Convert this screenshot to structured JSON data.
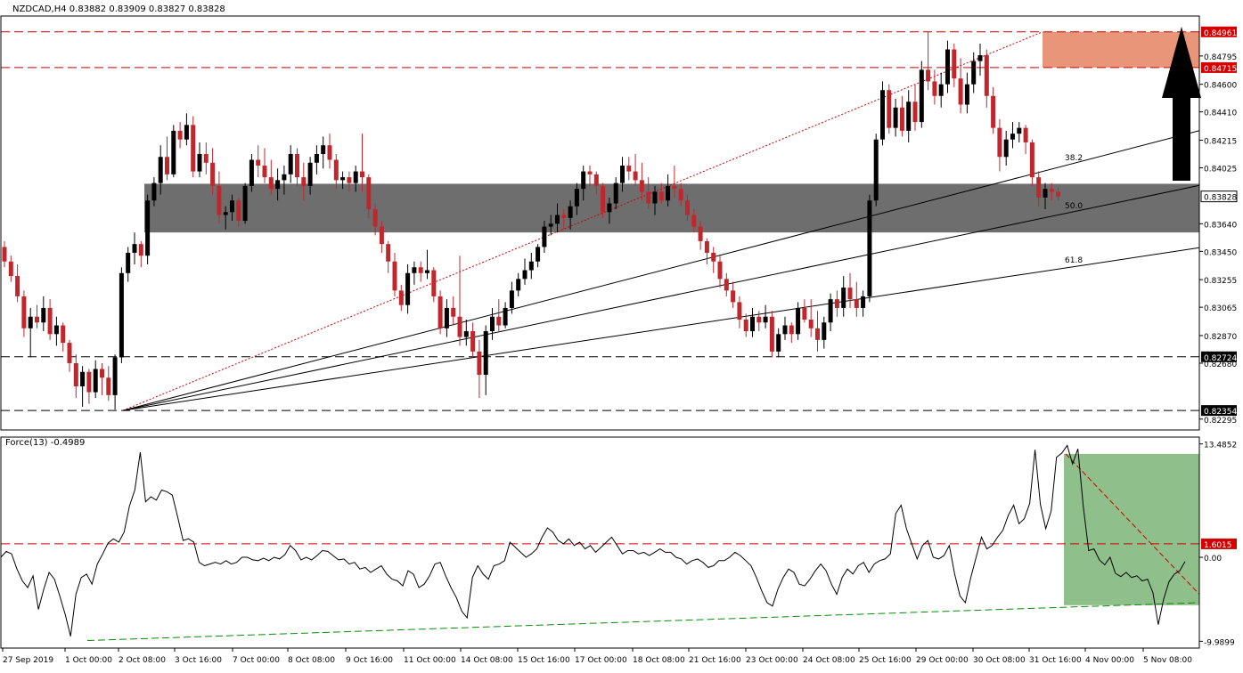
{
  "chart_data": {
    "type": "candlestick",
    "symbol_header": "NZDCAD,H4  0.83882 0.83909 0.83827 0.83828",
    "price_axis_ticks": [
      "0.84795",
      "0.84600",
      "0.84410",
      "0.84215",
      "0.84025",
      "0.83640",
      "0.83450",
      "0.83255",
      "0.83065",
      "0.82870",
      "0.82680",
      "0.82295"
    ],
    "price_ylim": [
      0.8222,
      0.8507
    ],
    "levels": [
      {
        "label": "0.84961",
        "value": 0.84961
      },
      {
        "label": "0.84715",
        "value": 0.84715
      },
      {
        "label": "0.83828",
        "value": 0.83828
      },
      {
        "label": "0.82724",
        "value": 0.82724
      },
      {
        "label": "0.82354",
        "value": 0.82354
      }
    ],
    "fib_labels": [
      {
        "label": "38.2",
        "value": 0.8404
      },
      {
        "label": "50.0",
        "value": 0.8371
      },
      {
        "label": "61.8",
        "value": 0.83335
      }
    ],
    "zones": {
      "resistance": {
        "from": 0.84715,
        "to": 0.84961
      },
      "support": {
        "from": 0.8358,
        "to": 0.83915
      }
    },
    "x_axis_labels": [
      "27 Sep 2019",
      "1 Oct 00:00",
      "2 Oct 08:00",
      "3 Oct 16:00",
      "7 Oct 00:00",
      "8 Oct 08:00",
      "9 Oct 16:00",
      "11 Oct 00:00",
      "14 Oct 08:00",
      "15 Oct 16:00",
      "17 Oct 00:00",
      "18 Oct 08:00",
      "21 Oct 16:00",
      "23 Oct 00:00",
      "24 Oct 08:00",
      "25 Oct 16:00",
      "29 Oct 00:00",
      "30 Oct 08:00",
      "31 Oct 16:00",
      "4 Nov 00:00",
      "5 Nov 08:00"
    ],
    "candles": [
      [
        0.8348,
        0.8352,
        0.8334,
        0.8338
      ],
      [
        0.8338,
        0.8342,
        0.8324,
        0.8328
      ],
      [
        0.8328,
        0.8336,
        0.831,
        0.8314
      ],
      [
        0.8314,
        0.8318,
        0.8286,
        0.8292
      ],
      [
        0.8292,
        0.8306,
        0.8272,
        0.83
      ],
      [
        0.83,
        0.8308,
        0.8292,
        0.8296
      ],
      [
        0.8296,
        0.8314,
        0.829,
        0.8306
      ],
      [
        0.8306,
        0.8312,
        0.8284,
        0.8288
      ],
      [
        0.8288,
        0.83,
        0.828,
        0.8294
      ],
      [
        0.8294,
        0.8296,
        0.8276,
        0.8282
      ],
      [
        0.8282,
        0.8284,
        0.8262,
        0.8268
      ],
      [
        0.8268,
        0.8274,
        0.8244,
        0.8252
      ],
      [
        0.8252,
        0.8266,
        0.8238,
        0.8262
      ],
      [
        0.8262,
        0.8264,
        0.824,
        0.8248
      ],
      [
        0.8248,
        0.827,
        0.8244,
        0.8264
      ],
      [
        0.8264,
        0.8268,
        0.8246,
        0.8258
      ],
      [
        0.8258,
        0.8266,
        0.8242,
        0.8246
      ],
      [
        0.8246,
        0.8274,
        0.8236,
        0.8272
      ],
      [
        0.8272,
        0.8334,
        0.8268,
        0.833
      ],
      [
        0.833,
        0.8348,
        0.8324,
        0.8344
      ],
      [
        0.8344,
        0.8358,
        0.8336,
        0.835
      ],
      [
        0.835,
        0.8352,
        0.8334,
        0.8342
      ],
      [
        0.8342,
        0.8384,
        0.8336,
        0.838
      ],
      [
        0.838,
        0.8396,
        0.8376,
        0.8392
      ],
      [
        0.8392,
        0.8418,
        0.8384,
        0.841
      ],
      [
        0.841,
        0.8424,
        0.8394,
        0.8398
      ],
      [
        0.8398,
        0.8432,
        0.8396,
        0.8428
      ],
      [
        0.8428,
        0.8434,
        0.8416,
        0.8422
      ],
      [
        0.8422,
        0.844,
        0.8418,
        0.8432
      ],
      [
        0.8432,
        0.8438,
        0.8396,
        0.84
      ],
      [
        0.84,
        0.842,
        0.8396,
        0.8412
      ],
      [
        0.8412,
        0.842,
        0.8398,
        0.8406
      ],
      [
        0.8406,
        0.8416,
        0.8384,
        0.839
      ],
      [
        0.839,
        0.84,
        0.8364,
        0.837
      ],
      [
        0.837,
        0.8376,
        0.836,
        0.8372
      ],
      [
        0.8372,
        0.8384,
        0.8366,
        0.838
      ],
      [
        0.838,
        0.8382,
        0.8362,
        0.8366
      ],
      [
        0.8366,
        0.8392,
        0.8364,
        0.839
      ],
      [
        0.839,
        0.8412,
        0.8386,
        0.8408
      ],
      [
        0.8408,
        0.8418,
        0.8396,
        0.8404
      ],
      [
        0.8404,
        0.8416,
        0.8392,
        0.8396
      ],
      [
        0.8396,
        0.8408,
        0.8384,
        0.8388
      ],
      [
        0.8388,
        0.8402,
        0.838,
        0.8394
      ],
      [
        0.8394,
        0.8404,
        0.8384,
        0.8398
      ],
      [
        0.8398,
        0.8418,
        0.8392,
        0.8412
      ],
      [
        0.8412,
        0.8416,
        0.839,
        0.8396
      ],
      [
        0.8396,
        0.8406,
        0.838,
        0.839
      ],
      [
        0.839,
        0.841,
        0.8384,
        0.8406
      ],
      [
        0.8406,
        0.8418,
        0.8398,
        0.8412
      ],
      [
        0.8412,
        0.8424,
        0.8402,
        0.8418
      ],
      [
        0.8418,
        0.8426,
        0.8402,
        0.8408
      ],
      [
        0.8408,
        0.8412,
        0.8388,
        0.8394
      ],
      [
        0.8394,
        0.84,
        0.8388,
        0.8396
      ],
      [
        0.8396,
        0.84,
        0.8386,
        0.8392
      ],
      [
        0.8392,
        0.8404,
        0.8386,
        0.84
      ],
      [
        0.84,
        0.8426,
        0.8386,
        0.8396
      ],
      [
        0.8396,
        0.8398,
        0.8368,
        0.8374
      ],
      [
        0.8374,
        0.8378,
        0.8356,
        0.8362
      ],
      [
        0.8362,
        0.8366,
        0.8344,
        0.835
      ],
      [
        0.835,
        0.8352,
        0.833,
        0.8338
      ],
      [
        0.8338,
        0.8344,
        0.8314,
        0.8318
      ],
      [
        0.8318,
        0.8322,
        0.8304,
        0.8308
      ],
      [
        0.8308,
        0.8336,
        0.8302,
        0.833
      ],
      [
        0.833,
        0.8338,
        0.8322,
        0.8334
      ],
      [
        0.8334,
        0.8338,
        0.8324,
        0.833
      ],
      [
        0.833,
        0.8346,
        0.8326,
        0.8332
      ],
      [
        0.8332,
        0.8334,
        0.831,
        0.8314
      ],
      [
        0.8314,
        0.8318,
        0.8288,
        0.8292
      ],
      [
        0.8292,
        0.8312,
        0.8286,
        0.8306
      ],
      [
        0.8306,
        0.8314,
        0.8294,
        0.83
      ],
      [
        0.83,
        0.8342,
        0.828,
        0.8286
      ],
      [
        0.8286,
        0.8298,
        0.828,
        0.829
      ],
      [
        0.829,
        0.8296,
        0.8272,
        0.8276
      ],
      [
        0.8276,
        0.8284,
        0.8244,
        0.826
      ],
      [
        0.826,
        0.8294,
        0.8246,
        0.829
      ],
      [
        0.829,
        0.8306,
        0.8284,
        0.83
      ],
      [
        0.83,
        0.8312,
        0.829,
        0.8294
      ],
      [
        0.8294,
        0.831,
        0.8292,
        0.8306
      ],
      [
        0.8306,
        0.8324,
        0.8302,
        0.8318
      ],
      [
        0.8318,
        0.833,
        0.8314,
        0.8326
      ],
      [
        0.8326,
        0.834,
        0.8322,
        0.8332
      ],
      [
        0.8332,
        0.8344,
        0.8326,
        0.8338
      ],
      [
        0.8338,
        0.835,
        0.8334,
        0.8348
      ],
      [
        0.8348,
        0.8366,
        0.8344,
        0.8362
      ],
      [
        0.8362,
        0.837,
        0.8356,
        0.8364
      ],
      [
        0.8364,
        0.8378,
        0.8358,
        0.837
      ],
      [
        0.837,
        0.8374,
        0.836,
        0.8368
      ],
      [
        0.8368,
        0.838,
        0.836,
        0.8376
      ],
      [
        0.8376,
        0.8392,
        0.837,
        0.8388
      ],
      [
        0.8388,
        0.8404,
        0.838,
        0.84
      ],
      [
        0.84,
        0.8404,
        0.839,
        0.8398
      ],
      [
        0.8398,
        0.84,
        0.8384,
        0.839
      ],
      [
        0.839,
        0.8392,
        0.8368,
        0.8372
      ],
      [
        0.8372,
        0.8382,
        0.8364,
        0.8378
      ],
      [
        0.8378,
        0.8396,
        0.8374,
        0.8392
      ],
      [
        0.8392,
        0.841,
        0.8386,
        0.8404
      ],
      [
        0.8404,
        0.841,
        0.8394,
        0.84
      ],
      [
        0.84,
        0.8412,
        0.839,
        0.8394
      ],
      [
        0.8394,
        0.8406,
        0.838,
        0.8386
      ],
      [
        0.8386,
        0.8396,
        0.8374,
        0.8378
      ],
      [
        0.8378,
        0.839,
        0.837,
        0.8386
      ],
      [
        0.8386,
        0.8392,
        0.8378,
        0.838
      ],
      [
        0.838,
        0.8398,
        0.8376,
        0.839
      ],
      [
        0.839,
        0.8404,
        0.8382,
        0.8388
      ],
      [
        0.8388,
        0.8392,
        0.8376,
        0.838
      ],
      [
        0.838,
        0.8384,
        0.8366,
        0.837
      ],
      [
        0.837,
        0.8374,
        0.8358,
        0.8362
      ],
      [
        0.8362,
        0.8366,
        0.8346,
        0.8352
      ],
      [
        0.8352,
        0.8354,
        0.8336,
        0.8344
      ],
      [
        0.8344,
        0.8348,
        0.833,
        0.8338
      ],
      [
        0.8338,
        0.8342,
        0.832,
        0.8326
      ],
      [
        0.8326,
        0.833,
        0.8314,
        0.8318
      ],
      [
        0.8318,
        0.8324,
        0.8306,
        0.831
      ],
      [
        0.831,
        0.8314,
        0.8292,
        0.8298
      ],
      [
        0.8298,
        0.8302,
        0.8286,
        0.829
      ],
      [
        0.829,
        0.8306,
        0.8286,
        0.83
      ],
      [
        0.83,
        0.8304,
        0.829,
        0.8296
      ],
      [
        0.8296,
        0.8308,
        0.8292,
        0.83
      ],
      [
        0.83,
        0.8304,
        0.8272,
        0.8276
      ],
      [
        0.8276,
        0.8292,
        0.8272,
        0.8288
      ],
      [
        0.8288,
        0.83,
        0.8284,
        0.8294
      ],
      [
        0.8294,
        0.8296,
        0.8282,
        0.8288
      ],
      [
        0.8288,
        0.831,
        0.8284,
        0.8306
      ],
      [
        0.8306,
        0.8312,
        0.8296,
        0.8298
      ],
      [
        0.8298,
        0.8312,
        0.8286,
        0.8292
      ],
      [
        0.8292,
        0.8304,
        0.8276,
        0.8284
      ],
      [
        0.8284,
        0.83,
        0.8278,
        0.8296
      ],
      [
        0.8296,
        0.8316,
        0.829,
        0.8312
      ],
      [
        0.8312,
        0.8318,
        0.83,
        0.8306
      ],
      [
        0.8306,
        0.8328,
        0.83,
        0.832
      ],
      [
        0.832,
        0.833,
        0.8306,
        0.8312
      ],
      [
        0.8312,
        0.8324,
        0.83,
        0.8306
      ],
      [
        0.8306,
        0.8318,
        0.83,
        0.8314
      ],
      [
        0.8314,
        0.8384,
        0.831,
        0.838
      ],
      [
        0.838,
        0.8426,
        0.8376,
        0.8422
      ],
      [
        0.8422,
        0.8462,
        0.8418,
        0.8456
      ],
      [
        0.8456,
        0.846,
        0.8426,
        0.843
      ],
      [
        0.843,
        0.845,
        0.8424,
        0.8444
      ],
      [
        0.8444,
        0.8452,
        0.8424,
        0.8428
      ],
      [
        0.8428,
        0.8456,
        0.842,
        0.8448
      ],
      [
        0.8448,
        0.846,
        0.8428,
        0.8434
      ],
      [
        0.8434,
        0.8476,
        0.843,
        0.847
      ],
      [
        0.847,
        0.8496,
        0.8456,
        0.8462
      ],
      [
        0.8462,
        0.847,
        0.8446,
        0.8452
      ],
      [
        0.8452,
        0.8468,
        0.8444,
        0.846
      ],
      [
        0.846,
        0.849,
        0.8454,
        0.8484
      ],
      [
        0.8484,
        0.8488,
        0.8458,
        0.8464
      ],
      [
        0.8464,
        0.8478,
        0.844,
        0.8446
      ],
      [
        0.8446,
        0.8468,
        0.844,
        0.846
      ],
      [
        0.846,
        0.8482,
        0.8454,
        0.8476
      ],
      [
        0.8476,
        0.8488,
        0.8466,
        0.848
      ],
      [
        0.848,
        0.8484,
        0.8444,
        0.8452
      ],
      [
        0.8452,
        0.8458,
        0.8426,
        0.843
      ],
      [
        0.843,
        0.8436,
        0.84,
        0.841
      ],
      [
        0.841,
        0.8428,
        0.8404,
        0.8422
      ],
      [
        0.8422,
        0.8434,
        0.8416,
        0.8426
      ],
      [
        0.8426,
        0.8434,
        0.842,
        0.843
      ],
      [
        0.843,
        0.8432,
        0.8412,
        0.842
      ],
      [
        0.842,
        0.8422,
        0.839,
        0.8396
      ],
      [
        0.8396,
        0.84,
        0.8376,
        0.8382
      ],
      [
        0.8382,
        0.8392,
        0.8374,
        0.8388
      ],
      [
        0.8388,
        0.8392,
        0.838,
        0.8386
      ],
      [
        0.8386,
        0.8389,
        0.838,
        0.83828
      ]
    ],
    "indicator": {
      "label": "Force(13) -0.4989",
      "axis_ticks": [
        "13.4852",
        "1.6015",
        "0.00",
        "-9.9899"
      ],
      "ylim": [
        -10.8,
        14.3
      ],
      "level": {
        "label": "1.6015",
        "value": 1.6015
      },
      "values": [
        0.0,
        0.7,
        0.4,
        -1.4,
        -2.8,
        -3.6,
        -2.2,
        -6.2,
        -3.8,
        -1.8,
        -2.6,
        -4.6,
        -6.8,
        -9.4,
        -4.4,
        -2.4,
        -2.0,
        -3.2,
        -0.8,
        0.4,
        1.7,
        2.2,
        1.8,
        3.0,
        6.1,
        8.0,
        12.5,
        6.6,
        7.2,
        6.8,
        8.0,
        7.8,
        7.4,
        4.8,
        2.0,
        2.2,
        1.8,
        -0.6,
        -1.0,
        -0.8,
        -0.6,
        -0.8,
        -0.4,
        -0.8,
        -0.6,
        0.0,
        0.0,
        -0.3,
        -0.4,
        -0.1,
        -0.4,
        0.0,
        -0.2,
        0.3,
        1.4,
        0.8,
        -0.3,
        0.0,
        -0.3,
        0.2,
        0.8,
        0.7,
        0.2,
        -0.3,
        -0.2,
        -0.8,
        -0.6,
        -1.4,
        -1.2,
        -1.8,
        -1.4,
        -1.0,
        -2.0,
        -2.6,
        -2.8,
        -3.4,
        -1.6,
        -2.0,
        -3.6,
        -3.2,
        -2.2,
        -0.8,
        -0.6,
        -2.2,
        -3.6,
        -4.8,
        -6.4,
        -7.2,
        -2.4,
        -1.0,
        -2.0,
        -2.6,
        -1.0,
        -0.8,
        -0.4,
        1.8,
        1.2,
        0.6,
        0.0,
        0.4,
        1.0,
        2.4,
        3.5,
        3.0,
        2.0,
        1.6,
        2.2,
        1.4,
        1.8,
        1.0,
        1.4,
        0.6,
        1.2,
        1.8,
        2.4,
        1.4,
        0.4,
        0.8,
        0.8,
        0.4,
        0.6,
        0.2,
        0.6,
        1.0,
        0.6,
        0.6,
        0.0,
        -0.2,
        -0.8,
        -0.4,
        -0.2,
        -0.6,
        -1.2,
        -1.0,
        -0.4,
        -0.4,
        0.0,
        0.6,
        0.2,
        -0.4,
        -1.0,
        -2.4,
        -4.0,
        -5.4,
        -5.8,
        -3.8,
        -2.4,
        -1.4,
        -1.8,
        -3.2,
        -3.4,
        -2.6,
        -1.6,
        -0.8,
        -1.6,
        -3.2,
        -4.4,
        -2.4,
        -1.4,
        -2.0,
        -1.0,
        -0.6,
        -1.8,
        -0.8,
        -0.4,
        -0.2,
        0.4,
        5.2,
        6.2,
        3.4,
        1.6,
        -0.2,
        1.4,
        2.0,
        0.0,
        -0.2,
        0.2,
        1.4,
        -2.0,
        -4.6,
        -5.4,
        -2.4,
        0.0,
        2.4,
        1.0,
        1.4,
        2.4,
        3.2,
        5.0,
        6.2,
        4.0,
        4.6,
        6.4,
        12.8,
        6.3,
        3.4,
        5.5,
        11.9,
        12.4,
        13.3,
        11.1,
        12.9,
        6.1,
        0.8,
        1.0,
        -0.3,
        -0.9,
        0.0,
        -1.9,
        -2.3,
        -1.8,
        -2.4,
        -2.2,
        -2.8,
        -2.6,
        -4.2,
        -8.0,
        -5.0,
        -2.9,
        -2.0,
        -1.6,
        -0.5
      ]
    }
  }
}
